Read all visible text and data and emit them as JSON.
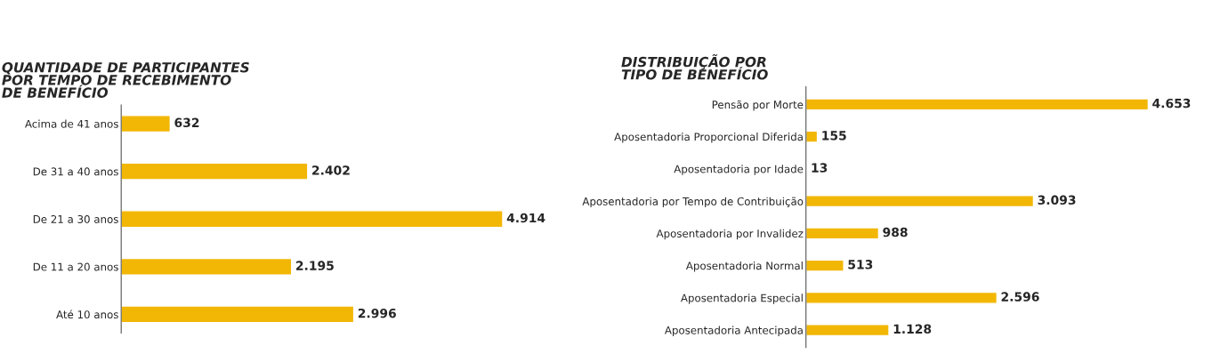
{
  "chart_data": [
    {
      "type": "bar",
      "orientation": "horizontal",
      "title": "QUANTIDADE DE PARTICIPANTES\nPOR TEMPO DE RECEBIMENTO\nDE BENEFÍCIO",
      "categories": [
        "Acima de 41 anos",
        "De 31 a 40 anos",
        "De 21 a 30 anos",
        "De 11 a 20 anos",
        "Até 10 anos"
      ],
      "values": [
        632,
        2402,
        4914,
        2195,
        2996
      ],
      "value_labels": [
        "632",
        "2.402",
        "4.914",
        "2.195",
        "2.996"
      ],
      "color": "#f2b705",
      "tick_labels": "y",
      "grid": false,
      "legend": false
    },
    {
      "type": "bar",
      "orientation": "horizontal",
      "title": "DISTRIBUIÇÃO POR\nTIPO DE BENEFÍCIO",
      "categories": [
        "Pensão por Morte",
        "Aposentadoria Proporcional Diferida",
        "Aposentadoria por Idade",
        "Aposentadoria por Tempo de Contribuição",
        "Aposentadoria por Invalidez",
        "Aposentadoria Normal",
        "Aposentadoria Especial",
        "Aposentadoria Antecipada"
      ],
      "values": [
        4653,
        155,
        13,
        3093,
        988,
        513,
        2596,
        1128
      ],
      "value_labels": [
        "4.653",
        "155",
        "13",
        "3.093",
        "988",
        "513",
        "2.596",
        "1.128"
      ],
      "color": "#f2b705",
      "tick_labels": "y",
      "grid": false,
      "legend": false
    }
  ]
}
